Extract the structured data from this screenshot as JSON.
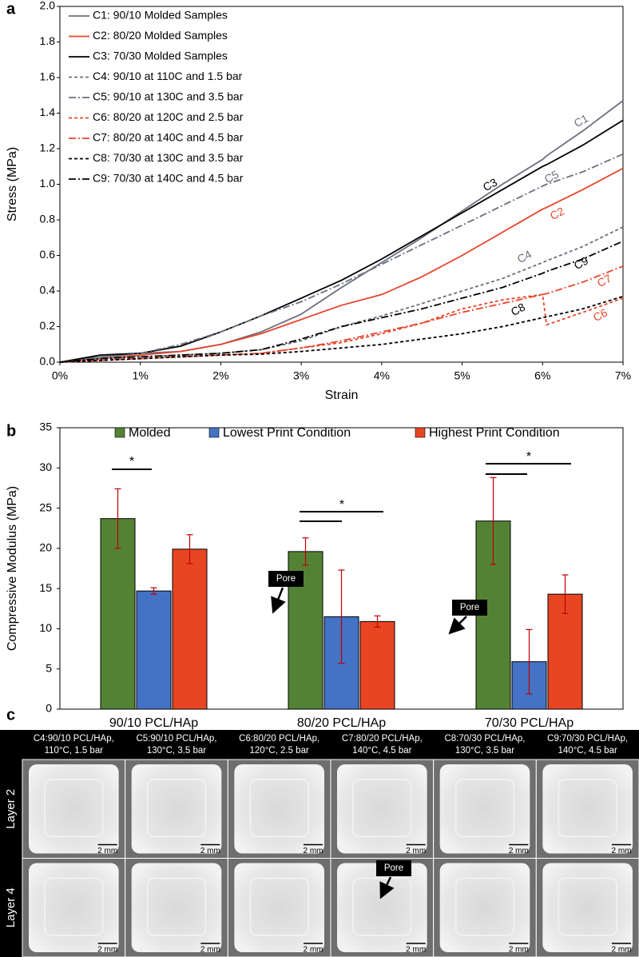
{
  "chart_data": [
    {
      "type": "line",
      "panel": "a",
      "xlabel": "Strain",
      "ylabel": "Stress (MPa)",
      "x": [
        0,
        0.5,
        1,
        1.5,
        2,
        2.5,
        3,
        3.5,
        4,
        4.5,
        5,
        5.5,
        6,
        6.05,
        6.5,
        7
      ],
      "xlim": [
        0,
        7
      ],
      "xticks": [
        {
          "value": 0,
          "label": "0%"
        },
        {
          "value": 1,
          "label": "1%"
        },
        {
          "value": 2,
          "label": "2%"
        },
        {
          "value": 3,
          "label": "3%"
        },
        {
          "value": 4,
          "label": "4%"
        },
        {
          "value": 5,
          "label": "5%"
        },
        {
          "value": 6,
          "label": "6%"
        },
        {
          "value": 7,
          "label": "7%"
        }
      ],
      "ylim": [
        0,
        2
      ],
      "yticks": [
        {
          "value": 0,
          "label": "0.0"
        },
        {
          "value": 0.2,
          "label": "0.2"
        },
        {
          "value": 0.4,
          "label": "0.4"
        },
        {
          "value": 0.6,
          "label": "0.6"
        },
        {
          "value": 0.8,
          "label": "0.8"
        },
        {
          "value": 1,
          "label": "1.0"
        },
        {
          "value": 1.2,
          "label": "1.2"
        },
        {
          "value": 1.4,
          "label": "1.4"
        },
        {
          "value": 1.6,
          "label": "1.6"
        },
        {
          "value": 1.8,
          "label": "1.8"
        },
        {
          "value": 2,
          "label": "2.0"
        }
      ],
      "series": [
        {
          "name": "C1: 90/10 Molded Samples",
          "label": "C1",
          "color": "#6b6e7e",
          "dash": "solid",
          "values": [
            0,
            0.03,
            0.05,
            0.06,
            0.1,
            0.17,
            0.27,
            0.42,
            0.56,
            0.7,
            0.85,
            1.0,
            1.14,
            1.16,
            1.3,
            1.47
          ]
        },
        {
          "name": "C2: 80/20 Molded Samples",
          "label": "C2",
          "color": "#e8452c",
          "dash": "solid",
          "values": [
            0,
            0.02,
            0.04,
            0.06,
            0.1,
            0.16,
            0.24,
            0.32,
            0.38,
            0.48,
            0.6,
            0.73,
            0.86,
            0.87,
            0.97,
            1.09
          ]
        },
        {
          "name": "C3: 70/30 Molded Samples",
          "label": "C3",
          "color": "#000000",
          "dash": "solid",
          "values": [
            0,
            0.04,
            0.05,
            0.09,
            0.17,
            0.26,
            0.36,
            0.46,
            0.58,
            0.71,
            0.84,
            0.97,
            1.1,
            1.11,
            1.22,
            1.36
          ]
        },
        {
          "name": "C4: 90/10 at 110C and 1.5 bar",
          "label": "C4",
          "color": "#6b6e7e",
          "dash": "dashed",
          "values": [
            0,
            0.02,
            0.03,
            0.04,
            0.05,
            0.07,
            0.12,
            0.2,
            0.26,
            0.33,
            0.4,
            0.47,
            0.56,
            0.57,
            0.65,
            0.76
          ]
        },
        {
          "name": "C5: 90/10 at 130C and 3.5 bar",
          "label": "C5",
          "color": "#6b6e7e",
          "dash": "dashdot",
          "values": [
            0,
            0.02,
            0.05,
            0.1,
            0.17,
            0.26,
            0.34,
            0.44,
            0.55,
            0.66,
            0.77,
            0.88,
            0.99,
            1.0,
            1.07,
            1.17
          ]
        },
        {
          "name": "C6: 80/20 at 120C and 2.5 bar",
          "label": "C6",
          "color": "#e8452c",
          "dash": "dashed",
          "values": [
            0,
            0.01,
            0.02,
            0.03,
            0.04,
            0.05,
            0.08,
            0.11,
            0.16,
            0.22,
            0.3,
            0.35,
            0.38,
            0.21,
            0.28,
            0.36
          ]
        },
        {
          "name": "C7: 80/20 at 140C and 4.5 bar",
          "label": "C7",
          "color": "#e8452c",
          "dash": "dashdot",
          "values": [
            0,
            0.01,
            0.02,
            0.03,
            0.04,
            0.05,
            0.08,
            0.12,
            0.17,
            0.22,
            0.28,
            0.33,
            0.38,
            0.385,
            0.45,
            0.54
          ]
        },
        {
          "name": "C8: 70/30 at 130C and 3.5 bar",
          "label": "C8",
          "color": "#000000",
          "dash": "dashed",
          "values": [
            0,
            0.01,
            0.02,
            0.03,
            0.04,
            0.045,
            0.06,
            0.08,
            0.1,
            0.13,
            0.16,
            0.2,
            0.25,
            0.255,
            0.3,
            0.37
          ]
        },
        {
          "name": "C9: 70/30 at 140C and 4.5 bar",
          "label": "C9",
          "color": "#000000",
          "dash": "dashdot",
          "values": [
            0,
            0.02,
            0.03,
            0.04,
            0.05,
            0.07,
            0.13,
            0.2,
            0.25,
            0.3,
            0.36,
            0.42,
            0.5,
            0.51,
            0.58,
            0.68
          ]
        }
      ]
    },
    {
      "type": "bar",
      "panel": "b",
      "ylabel": "Compressive Modulus (MPa)",
      "categories": [
        "90/10 PCL/HAp",
        "80/20 PCL/HAp",
        "70/30 PCL/HAp"
      ],
      "ylim": [
        0,
        35
      ],
      "yticks": [
        0,
        5,
        10,
        15,
        20,
        25,
        30,
        35
      ],
      "series": [
        {
          "name": "Molded",
          "color": "#548235",
          "values": [
            23.7,
            19.6,
            23.4
          ],
          "errors": [
            3.7,
            1.7,
            5.4
          ]
        },
        {
          "name": "Lowest Print Condition",
          "color": "#4472c4",
          "values": [
            14.7,
            11.5,
            5.9
          ],
          "errors": [
            0.4,
            5.8,
            4.0
          ]
        },
        {
          "name": "Highest Print Condition",
          "color": "#e84523",
          "values": [
            19.9,
            10.9,
            14.3
          ],
          "errors": [
            1.8,
            0.7,
            2.4
          ]
        }
      ],
      "annotations": [
        "*",
        "*",
        "*"
      ]
    }
  ],
  "panel_c": {
    "panel": "c",
    "columns": [
      [
        "C4:90/10 PCL/HAp,",
        "110°C, 1.5 bar"
      ],
      [
        "C5:90/10 PCL/HAp,",
        "130°C, 3.5 bar"
      ],
      [
        "C6:80/20 PCL/HAp,",
        "120°C, 2.5 bar"
      ],
      [
        "C7:80/20 PCL/HAp,",
        "140°C, 4.5 bar"
      ],
      [
        "C8:70/30 PCL/HAp,",
        "130°C, 3.5 bar"
      ],
      [
        "C9:70/30 PCL/HAp,",
        "140°C, 4.5 bar"
      ]
    ],
    "rows": [
      "Layer 2",
      "Layer 4"
    ],
    "scale_bar": "2 mm",
    "pore_label": "Pore"
  }
}
